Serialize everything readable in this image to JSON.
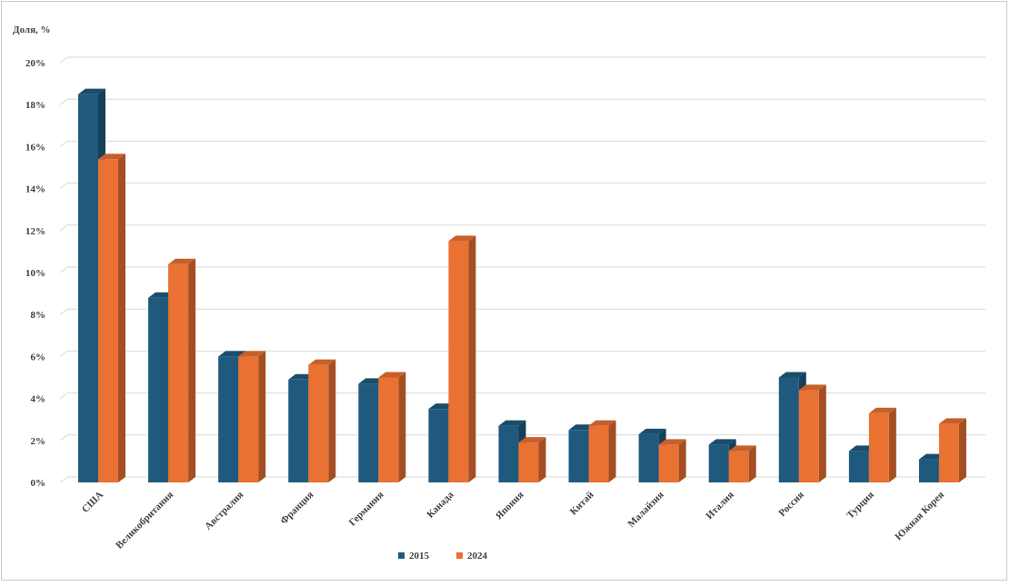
{
  "chart_data": {
    "type": "bar",
    "title": "",
    "ylabel": "Доля, %",
    "xlabel": "",
    "ylim": [
      0,
      20
    ],
    "y_ticks": [
      "0%",
      "2%",
      "4%",
      "6%",
      "8%",
      "10%",
      "12%",
      "14%",
      "16%",
      "18%",
      "20%"
    ],
    "grid": true,
    "legend_position": "bottom",
    "style": "3d-clustered-column",
    "categories": [
      "США",
      "Великобритания",
      "Австралия",
      "Франция",
      "Германия",
      "Канада",
      "Япония",
      "Китай",
      "Малайзия",
      "Италия",
      "Россия",
      "Турция",
      "Южная Корея"
    ],
    "series": [
      {
        "name": "2015",
        "color": "#1f5a7e",
        "values": [
          18.5,
          8.8,
          6.0,
          4.9,
          4.7,
          3.5,
          2.7,
          2.5,
          2.3,
          1.8,
          5.0,
          1.5,
          1.1
        ]
      },
      {
        "name": "2024",
        "color": "#e97132",
        "values": [
          15.4,
          10.4,
          6.0,
          5.6,
          5.0,
          11.5,
          1.9,
          2.7,
          1.8,
          1.5,
          4.4,
          3.3,
          2.8
        ]
      }
    ]
  }
}
